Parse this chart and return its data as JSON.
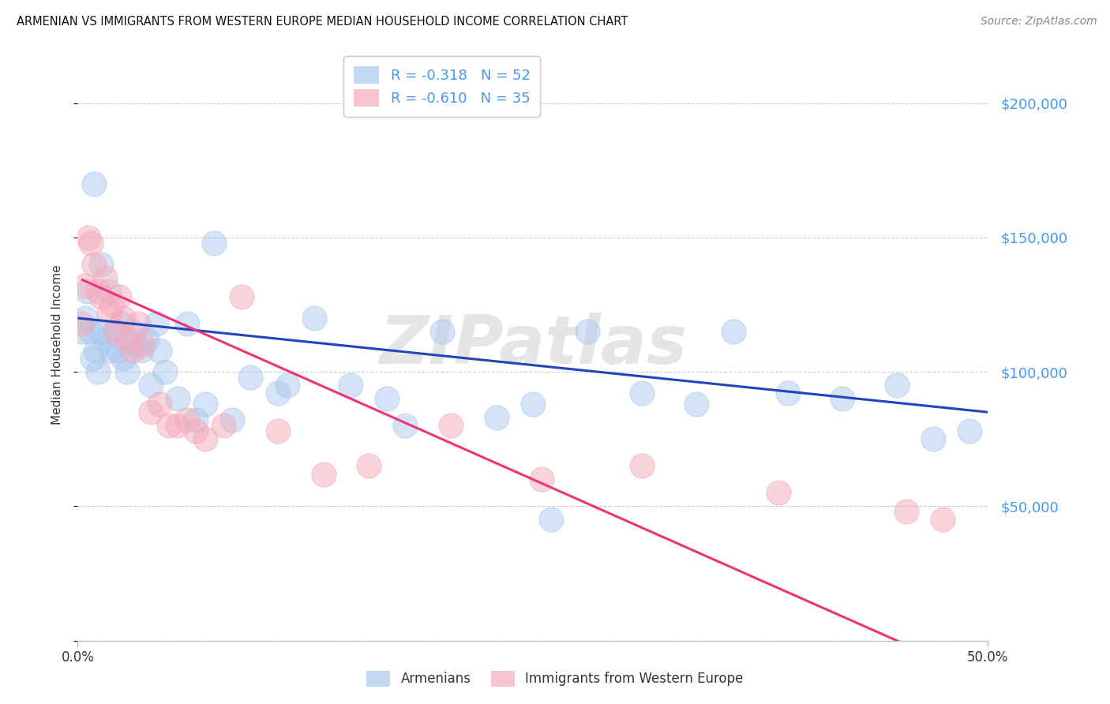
{
  "title": "ARMENIAN VS IMMIGRANTS FROM WESTERN EUROPE MEDIAN HOUSEHOLD INCOME CORRELATION CHART",
  "source": "Source: ZipAtlas.com",
  "ylabel": "Median Household Income",
  "ytick_values": [
    0,
    50000,
    100000,
    150000,
    200000
  ],
  "xlim": [
    0.0,
    0.5
  ],
  "ylim": [
    0,
    220000
  ],
  "watermark": "ZIPatlas",
  "armenians_label": "Armenians",
  "immigrants_label": "Immigrants from Western Europe",
  "blue_color": "#aac8ee",
  "pink_color": "#f4aabb",
  "blue_line_color": "#2244bb",
  "pink_line_color": "#ee3377",
  "ytick_color": "#4499ee",
  "grid_color": "#cccccc",
  "blue_R": -0.318,
  "blue_N": 52,
  "pink_R": -0.61,
  "pink_N": 35,
  "blue_intercept": 120000,
  "blue_slope": -70000,
  "pink_intercept": 135000,
  "pink_slope": -300000,
  "armenians_x": [
    0.002,
    0.004,
    0.005,
    0.007,
    0.008,
    0.009,
    0.01,
    0.011,
    0.012,
    0.013,
    0.015,
    0.017,
    0.018,
    0.02,
    0.022,
    0.024,
    0.025,
    0.027,
    0.03,
    0.032,
    0.035,
    0.038,
    0.04,
    0.043,
    0.045,
    0.048,
    0.055,
    0.06,
    0.065,
    0.075,
    0.085,
    0.095,
    0.115,
    0.13,
    0.15,
    0.17,
    0.2,
    0.23,
    0.25,
    0.28,
    0.31,
    0.34,
    0.36,
    0.39,
    0.42,
    0.45,
    0.47,
    0.49,
    0.07,
    0.11,
    0.18,
    0.26
  ],
  "armenians_y": [
    115000,
    120000,
    130000,
    115000,
    105000,
    170000,
    108000,
    100000,
    115000,
    140000,
    112000,
    130000,
    108000,
    115000,
    108000,
    118000,
    105000,
    100000,
    115000,
    110000,
    108000,
    112000,
    95000,
    118000,
    108000,
    100000,
    90000,
    118000,
    82000,
    148000,
    82000,
    98000,
    95000,
    120000,
    95000,
    90000,
    115000,
    83000,
    88000,
    115000,
    92000,
    88000,
    115000,
    92000,
    90000,
    95000,
    75000,
    78000,
    88000,
    92000,
    80000,
    45000
  ],
  "immigrants_x": [
    0.002,
    0.004,
    0.006,
    0.007,
    0.009,
    0.011,
    0.013,
    0.015,
    0.017,
    0.019,
    0.021,
    0.023,
    0.025,
    0.027,
    0.03,
    0.033,
    0.036,
    0.04,
    0.045,
    0.05,
    0.055,
    0.06,
    0.065,
    0.07,
    0.08,
    0.09,
    0.11,
    0.135,
    0.16,
    0.205,
    0.255,
    0.31,
    0.385,
    0.455,
    0.475
  ],
  "immigrants_y": [
    118000,
    132000,
    150000,
    148000,
    140000,
    130000,
    128000,
    135000,
    122000,
    125000,
    115000,
    128000,
    120000,
    112000,
    108000,
    118000,
    110000,
    85000,
    88000,
    80000,
    80000,
    82000,
    78000,
    75000,
    80000,
    128000,
    78000,
    62000,
    65000,
    80000,
    60000,
    65000,
    55000,
    48000,
    45000
  ]
}
